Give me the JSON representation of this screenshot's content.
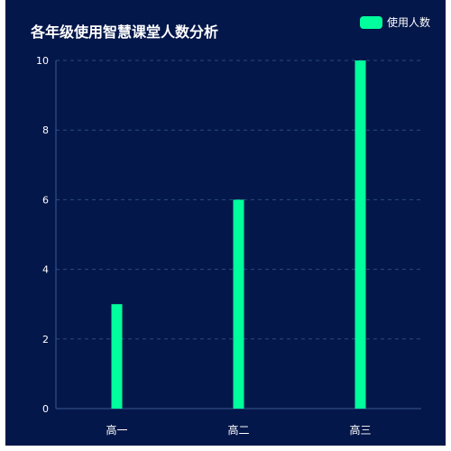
{
  "chart_data": {
    "type": "bar",
    "title": "各年级使用智慧课堂人数分析",
    "categories": [
      "高一",
      "高二",
      "高三"
    ],
    "series": [
      {
        "name": "使用人数",
        "values": [
          3,
          6,
          10
        ]
      }
    ],
    "ylim": [
      0,
      10
    ],
    "yticks": [
      0,
      2,
      4,
      6,
      8,
      10
    ],
    "grid": true,
    "legend_position": "top-right",
    "colors": {
      "background": "#04174a",
      "bar": "#00ff9c",
      "grid": "#2a4a80",
      "axis": "#3a5a90",
      "text": "#ffffff"
    }
  }
}
